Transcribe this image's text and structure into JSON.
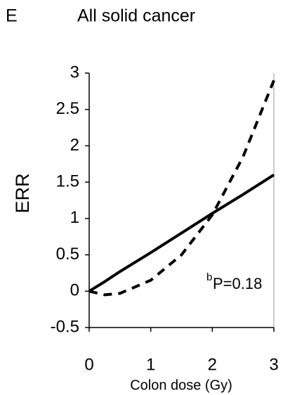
{
  "chart_data": {
    "type": "line",
    "panel": "E",
    "title": "All solid cancer",
    "x_label": "Colon dose (Gy)",
    "y_label": "ERR",
    "x": [
      0,
      0.25,
      0.5,
      1,
      1.5,
      2,
      2.5,
      3
    ],
    "series": [
      {
        "color": "#000000",
        "style": "solid",
        "values": [
          0,
          0.13,
          0.27,
          0.53,
          0.8,
          1.07,
          1.33,
          1.6
        ]
      },
      {
        "color": "#000000",
        "style": "dashed",
        "values": [
          0,
          -0.05,
          -0.03,
          0.15,
          0.5,
          1.05,
          1.85,
          2.9
        ]
      }
    ],
    "xlim": [
      0,
      3
    ],
    "xticks": [
      0,
      1,
      2,
      3
    ],
    "ylim": [
      -0.5,
      3
    ],
    "yticks": [
      -0.5,
      0,
      0.5,
      1,
      1.5,
      2,
      2.5,
      3
    ],
    "annotation": {
      "superscript": "b",
      "text": "P=0.18"
    }
  }
}
